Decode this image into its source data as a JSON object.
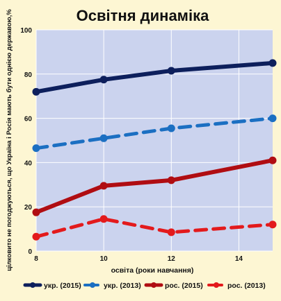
{
  "chart_data": {
    "type": "line",
    "title": "Освітня динаміка",
    "xlabel": "освіта (роки навчання)",
    "ylabel": "цілковито не погоджуються, що Україна і Росія мають бути однією державою,%",
    "xlim": [
      8,
      15
    ],
    "ylim": [
      0,
      100
    ],
    "x_ticks": [
      8,
      10,
      12,
      14
    ],
    "y_ticks": [
      0,
      20,
      40,
      60,
      80,
      100
    ],
    "grid": true,
    "legend_position": "bottom",
    "series": [
      {
        "name": "укр. (2015)",
        "color": "#0d1f5c",
        "style": "solid",
        "x": [
          8,
          10,
          12,
          15
        ],
        "values": [
          72,
          77.5,
          81.5,
          85
        ]
      },
      {
        "name": "укр. (2013)",
        "color": "#1b6fc2",
        "style": "dashed",
        "x": [
          8,
          10,
          12,
          15
        ],
        "values": [
          46.5,
          51,
          55.5,
          60
        ]
      },
      {
        "name": "рос. (2015)",
        "color": "#b00d12",
        "style": "solid",
        "x": [
          8,
          10,
          12,
          15
        ],
        "values": [
          17.5,
          29.5,
          32,
          41
        ]
      },
      {
        "name": "рос. (2013)",
        "color": "#e31a1c",
        "style": "dashed",
        "x": [
          8,
          10,
          12,
          15
        ],
        "values": [
          6.5,
          14.5,
          8.5,
          12
        ]
      }
    ]
  }
}
